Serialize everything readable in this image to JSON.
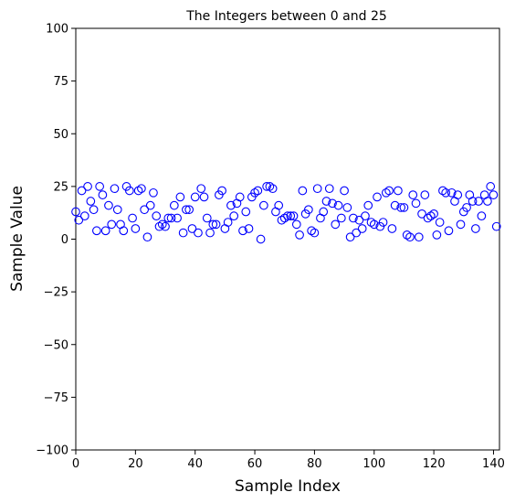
{
  "chart_data": {
    "type": "scatter",
    "title": "The Integers between 0 and 25",
    "xlabel": "Sample Index",
    "ylabel": "Sample Value",
    "xlim": [
      0,
      142
    ],
    "ylim": [
      -100,
      100
    ],
    "xticks": [
      0,
      20,
      40,
      60,
      80,
      100,
      120,
      140
    ],
    "yticks": [
      -100,
      -75,
      -50,
      -25,
      0,
      25,
      50,
      75,
      100
    ],
    "marker": "open-circle",
    "marker_color": "#0000ff",
    "grid": false,
    "series": [
      {
        "x": [
          0,
          1,
          2,
          3,
          4,
          5,
          6,
          7,
          8,
          9,
          10,
          11,
          12,
          13,
          14,
          15,
          16,
          17,
          18,
          19,
          20,
          21,
          22,
          23,
          24,
          25,
          26,
          27,
          28,
          29,
          30,
          31,
          32,
          33,
          34,
          35,
          36,
          37,
          38,
          39,
          40,
          41,
          42,
          43,
          44,
          45,
          46,
          47,
          48,
          49,
          50,
          51,
          52,
          53,
          54,
          55,
          56,
          57,
          58,
          59,
          60,
          61,
          62,
          63,
          64,
          65,
          66,
          67,
          68,
          69,
          70,
          71,
          72,
          73,
          74,
          75,
          76,
          77,
          78,
          79,
          80,
          81,
          82,
          83,
          84,
          85,
          86,
          87,
          88,
          89,
          90,
          91,
          92,
          93,
          94,
          95,
          96,
          97,
          98,
          99,
          100,
          101,
          102,
          103,
          104,
          105,
          106,
          107,
          108,
          109,
          110,
          111,
          112,
          113,
          114,
          115,
          116,
          117,
          118,
          119,
          120,
          121,
          122,
          123,
          124,
          125,
          126,
          127,
          128,
          129,
          130,
          131,
          132,
          133,
          134,
          135,
          136,
          137,
          138,
          139,
          140,
          141
        ],
        "y": [
          13,
          9,
          23,
          11,
          25,
          18,
          14,
          4,
          25,
          21,
          4,
          16,
          7,
          24,
          14,
          7,
          4,
          25,
          23,
          10,
          5,
          23,
          24,
          14,
          1,
          16,
          22,
          11,
          6,
          7,
          6,
          10,
          10,
          16,
          10,
          20,
          3,
          14,
          14,
          5,
          20,
          3,
          24,
          20,
          10,
          3,
          7,
          7,
          21,
          23,
          5,
          8,
          16,
          11,
          17,
          20,
          4,
          13,
          5,
          20,
          22,
          23,
          0,
          16,
          25,
          25,
          24,
          13,
          16,
          9,
          10,
          11,
          11,
          11,
          7,
          2,
          23,
          12,
          14,
          4,
          3,
          24,
          10,
          13,
          18,
          24,
          17,
          7,
          16,
          10,
          23,
          15,
          1,
          10,
          3,
          9,
          5,
          11,
          16,
          8,
          7,
          20,
          6,
          8,
          22,
          23,
          5,
          16,
          23,
          15,
          15,
          2,
          1,
          21,
          17,
          1,
          12,
          21,
          10,
          11,
          12,
          2,
          8,
          23,
          22,
          4,
          22,
          18,
          21,
          7,
          13,
          15,
          21,
          18,
          5,
          18,
          11,
          21,
          18,
          25,
          21,
          6
        ]
      }
    ]
  }
}
